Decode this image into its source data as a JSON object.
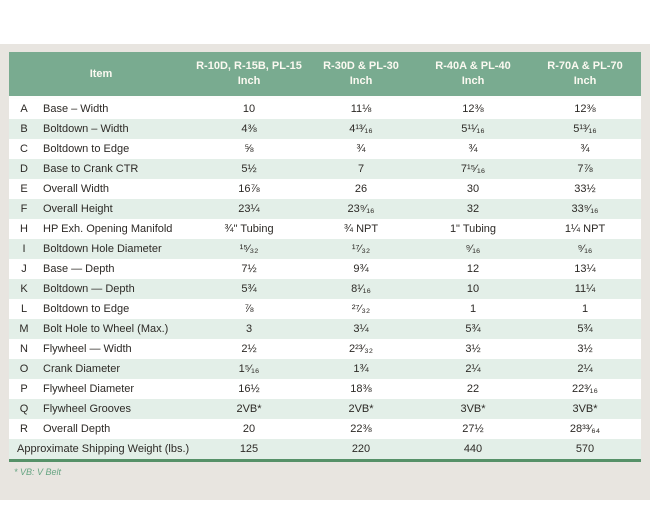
{
  "table": {
    "item_header": "Item",
    "unit_label": "Inch",
    "column_headers": [
      "R-10D, R-15B, PL-15",
      "R-30D & PL-30",
      "R-40A & PL-40",
      "R-70A & PL-70"
    ],
    "rows": [
      {
        "letter": "A",
        "item": "Base – Width",
        "values": [
          "10",
          "11⅛",
          "12⅜",
          "12⅜"
        ]
      },
      {
        "letter": "B",
        "item": "Boltdown – Width",
        "values": [
          "4⅜",
          "4¹³⁄₁₆",
          "5¹¹⁄₁₆",
          "5¹³⁄₁₆"
        ]
      },
      {
        "letter": "C",
        "item": "Boltdown to Edge",
        "values": [
          "⅝",
          "¾",
          "¾",
          "¾"
        ]
      },
      {
        "letter": "D",
        "item": "Base to Crank CTR",
        "values": [
          "5½",
          "7",
          "7¹⁵⁄₁₆",
          "7⅞"
        ]
      },
      {
        "letter": "E",
        "item": "Overall Width",
        "values": [
          "16⅞",
          "26",
          "30",
          "33½"
        ]
      },
      {
        "letter": "F",
        "item": "Overall Height",
        "values": [
          "23¼",
          "23⁹⁄₁₆",
          "32",
          "33⁹⁄₁₆"
        ]
      },
      {
        "letter": "H",
        "item": "HP Exh. Opening Manifold",
        "values": [
          "¾\" Tubing",
          "¾ NPT",
          "1\" Tubing",
          "1¼ NPT"
        ]
      },
      {
        "letter": "I",
        "item": "Boltdown Hole Diameter",
        "values": [
          "¹⁵⁄₃₂",
          "¹⁷⁄₃₂",
          "⁹⁄₁₆",
          "⁹⁄₁₆"
        ]
      },
      {
        "letter": "J",
        "item": "Base — Depth",
        "values": [
          "7½",
          "9¾",
          "12",
          "13¼"
        ]
      },
      {
        "letter": "K",
        "item": "Boltdown — Depth",
        "values": [
          "5¾",
          "8¹⁄₁₆",
          "10",
          "11¼"
        ]
      },
      {
        "letter": "L",
        "item": "Boltdown to Edge",
        "values": [
          "⅞",
          "²⁷⁄₃₂",
          "1",
          "1"
        ]
      },
      {
        "letter": "M",
        "item": "Bolt Hole to Wheel (Max.)",
        "values": [
          "3",
          "3¼",
          "5¾",
          "5¾"
        ]
      },
      {
        "letter": "N",
        "item": "Flywheel — Width",
        "values": [
          "2½",
          "2²³⁄₃₂",
          "3½",
          "3½"
        ]
      },
      {
        "letter": "O",
        "item": "Crank Diameter",
        "values": [
          "1⁵⁄₁₆",
          "1¾",
          "2¼",
          "2¼"
        ]
      },
      {
        "letter": "P",
        "item": "Flywheel Diameter",
        "values": [
          "16½",
          "18⅜",
          "22",
          "22³⁄₁₆"
        ]
      },
      {
        "letter": "Q",
        "item": "Flywheel Grooves",
        "values": [
          "2VB*",
          "2VB*",
          "3VB*",
          "3VB*"
        ]
      },
      {
        "letter": "R",
        "item": "Overall Depth",
        "values": [
          "20",
          "22⅜",
          "27½",
          "28³³⁄₆₄"
        ]
      }
    ],
    "summary_row": {
      "label": "Approximate Shipping Weight (lbs.)",
      "values": [
        "125",
        "220",
        "440",
        "570"
      ]
    }
  },
  "footnote": "* VB: V Belt",
  "colors": {
    "header_green": "#79ab90",
    "stripe_green": "#e3efe8",
    "border_green": "#569168",
    "panel_gray": "#e8e5e0",
    "footnote_green": "#67a583",
    "header_text": "#fbf9f1",
    "body_text": "#2d2a26"
  }
}
